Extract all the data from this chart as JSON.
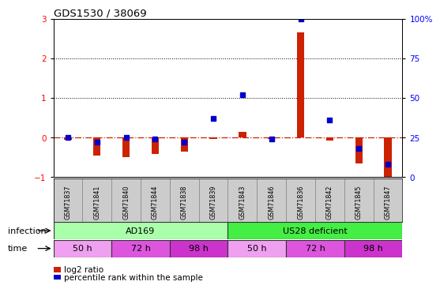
{
  "title": "GDS1530 / 38069",
  "samples": [
    "GSM71837",
    "GSM71841",
    "GSM71840",
    "GSM71844",
    "GSM71838",
    "GSM71839",
    "GSM71843",
    "GSM71846",
    "GSM71836",
    "GSM71842",
    "GSM71845",
    "GSM71847"
  ],
  "log2_ratio": [
    -0.05,
    -0.45,
    -0.5,
    -0.42,
    -0.35,
    -0.04,
    0.15,
    -0.04,
    2.65,
    -0.07,
    -0.65,
    -1.0
  ],
  "percentile_rank_pct": [
    25,
    22,
    25,
    24,
    22,
    37,
    52,
    24,
    100,
    36,
    18,
    8
  ],
  "ylim_left": [
    -1.0,
    3.0
  ],
  "ylim_right": [
    0,
    100
  ],
  "yticks_left": [
    -1,
    0,
    1,
    2,
    3
  ],
  "yticks_right": [
    0,
    25,
    50,
    75,
    100
  ],
  "infection_groups": [
    {
      "label": "AD169",
      "start": 0,
      "end": 6,
      "color": "#aaffaa"
    },
    {
      "label": "US28 deficient",
      "start": 6,
      "end": 12,
      "color": "#44ee44"
    }
  ],
  "time_groups": [
    {
      "label": "50 h",
      "start": 0,
      "end": 2,
      "color": "#f0a0f0"
    },
    {
      "label": "72 h",
      "start": 2,
      "end": 4,
      "color": "#dd55dd"
    },
    {
      "label": "98 h",
      "start": 4,
      "end": 6,
      "color": "#cc33cc"
    },
    {
      "label": "50 h",
      "start": 6,
      "end": 8,
      "color": "#f0a0f0"
    },
    {
      "label": "72 h",
      "start": 8,
      "end": 10,
      "color": "#dd55dd"
    },
    {
      "label": "98 h",
      "start": 10,
      "end": 12,
      "color": "#cc33cc"
    }
  ],
  "bar_color": "#cc2200",
  "dot_color": "#0000cc",
  "zero_line_color": "#cc2200",
  "bg_color": "#ffffff",
  "label_infection": "infection",
  "label_time": "time",
  "legend_log2": "log2 ratio",
  "legend_pct": "percentile rank within the sample"
}
